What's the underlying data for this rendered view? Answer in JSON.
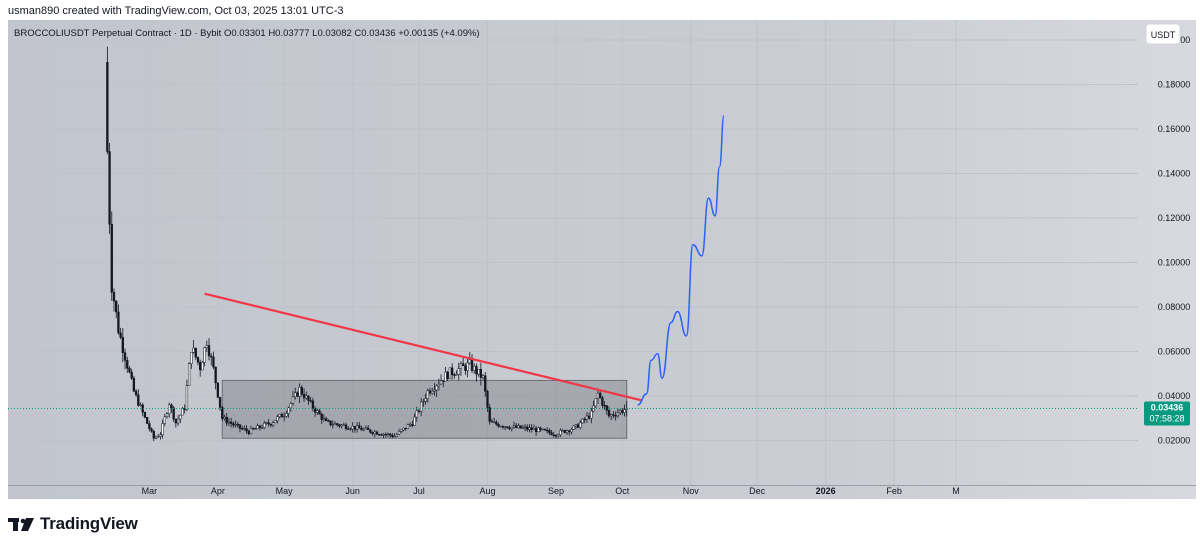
{
  "caption": "usman890 created with TradingView.com, Oct 03, 2025 13:01 UTC-3",
  "brand": "TradingView",
  "chart_data": {
    "type": "candlestick",
    "symbol_line": "BROCCOLIUSDT Perpetual Contract · 1D · Bybit  O0.03301  H0.03777  L0.03082  C0.03436  +0.00135 (+4.09%)",
    "currency": "USDT",
    "last_price": "0.03436",
    "countdown": "07:58:28",
    "ylim": [
      0.0,
      0.209
    ],
    "y_ticks": [
      "0.20000",
      "0.18000",
      "0.16000",
      "0.14000",
      "0.12000",
      "0.10000",
      "0.08000",
      "0.06000",
      "0.04000",
      "0.02000"
    ],
    "x_ticks": [
      "Mar",
      "Apr",
      "May",
      "Jun",
      "Jul",
      "Aug",
      "Sep",
      "Oct",
      "Nov",
      "Dec",
      "2026",
      "Feb",
      "M"
    ],
    "price_key_points": [
      [
        "2025-02-10",
        0.15
      ],
      [
        "2025-02-12",
        0.09
      ],
      [
        "2025-02-15",
        0.07
      ],
      [
        "2025-02-18",
        0.058
      ],
      [
        "2025-02-22",
        0.042
      ],
      [
        "2025-02-27",
        0.03
      ],
      [
        "2025-03-03",
        0.021
      ],
      [
        "2025-03-06",
        0.023
      ],
      [
        "2025-03-10",
        0.037
      ],
      [
        "2025-03-13",
        0.028
      ],
      [
        "2025-03-17",
        0.035
      ],
      [
        "2025-03-20",
        0.062
      ],
      [
        "2025-03-24",
        0.053
      ],
      [
        "2025-03-27",
        0.065
      ],
      [
        "2025-03-30",
        0.052
      ],
      [
        "2025-04-03",
        0.03
      ],
      [
        "2025-04-10",
        0.026
      ],
      [
        "2025-04-15",
        0.024
      ],
      [
        "2025-04-25",
        0.028
      ],
      [
        "2025-05-01",
        0.032
      ],
      [
        "2025-05-08",
        0.043
      ],
      [
        "2025-05-14",
        0.035
      ],
      [
        "2025-05-20",
        0.028
      ],
      [
        "2025-06-01",
        0.026
      ],
      [
        "2025-06-10",
        0.024
      ],
      [
        "2025-06-20",
        0.022
      ],
      [
        "2025-06-28",
        0.028
      ],
      [
        "2025-07-05",
        0.042
      ],
      [
        "2025-07-14",
        0.05
      ],
      [
        "2025-07-24",
        0.054
      ],
      [
        "2025-07-30",
        0.048
      ],
      [
        "2025-08-02",
        0.028
      ],
      [
        "2025-08-12",
        0.026
      ],
      [
        "2025-08-22",
        0.025
      ],
      [
        "2025-09-01",
        0.023
      ],
      [
        "2025-09-10",
        0.026
      ],
      [
        "2025-09-17",
        0.032
      ],
      [
        "2025-09-20",
        0.041
      ],
      [
        "2025-09-25",
        0.031
      ],
      [
        "2025-10-03",
        0.0344
      ]
    ],
    "shapes": {
      "range_rectangle": {
        "x0": "2025-04-03",
        "x1": "2025-10-03",
        "y_low": 0.021,
        "y_high": 0.047
      },
      "trendline": {
        "points": [
          [
            "2025-03-26",
            0.086
          ],
          [
            "2025-10-10",
            0.038
          ]
        ],
        "color": "#f23645"
      },
      "projection_path": {
        "color": "#2962ff",
        "points": [
          [
            "2025-10-08",
            0.036
          ],
          [
            "2025-10-12",
            0.041
          ],
          [
            "2025-10-14",
            0.056
          ],
          [
            "2025-10-17",
            0.059
          ],
          [
            "2025-10-19",
            0.048
          ],
          [
            "2025-10-23",
            0.073
          ],
          [
            "2025-10-26",
            0.078
          ],
          [
            "2025-10-30",
            0.067
          ],
          [
            "2025-11-02",
            0.108
          ],
          [
            "2025-11-06",
            0.103
          ],
          [
            "2025-11-09",
            0.129
          ],
          [
            "2025-11-12",
            0.121
          ],
          [
            "2025-11-14",
            0.143
          ],
          [
            "2025-11-16",
            0.166
          ]
        ]
      }
    },
    "grid": true
  },
  "colors": {
    "pane_bg": "#c5c8cf",
    "axis_text": "#131722",
    "last_price_bg": "#089981",
    "range_fill": "#7d7f85",
    "trendline": "#f23645",
    "projection": "#2962ff"
  },
  "icons": [
    "tradingview-logo-icon"
  ]
}
